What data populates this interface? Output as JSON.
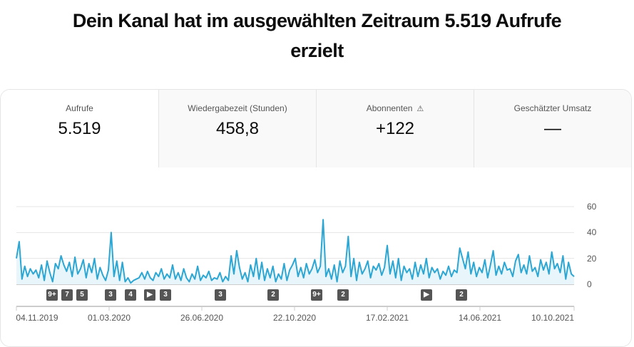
{
  "headline": "Dein Kanal hat im ausgewählten Zeitraum 5.519 Aufrufe erzielt",
  "tabs": [
    {
      "label": "Aufrufe",
      "value": "5.519"
    },
    {
      "label": "Wiedergabezeit (Stunden)",
      "value": "458,8"
    },
    {
      "label": "Abonnenten",
      "value": "+122",
      "icon": "warning-icon"
    },
    {
      "label": "Geschätzter Umsatz",
      "value": "—"
    }
  ],
  "chart_data": {
    "type": "area",
    "series_color": "#2ca6d3",
    "ylim": [
      0,
      60
    ],
    "y_ticks": [
      "60",
      "40",
      "20",
      "0"
    ],
    "x_ticks": [
      "04.11.2019",
      "01.03.2020",
      "26.06.2020",
      "22.10.2020",
      "17.02.2021",
      "14.06.2021",
      "10.10.2021"
    ],
    "values": [
      20,
      33,
      4,
      14,
      6,
      12,
      8,
      11,
      5,
      15,
      3,
      18,
      9,
      2,
      16,
      12,
      22,
      15,
      10,
      17,
      6,
      21,
      8,
      12,
      19,
      5,
      16,
      9,
      20,
      4,
      13,
      7,
      3,
      11,
      40,
      6,
      18,
      3,
      17,
      2,
      5,
      1,
      3,
      4,
      5,
      9,
      4,
      10,
      5,
      3,
      9,
      6,
      12,
      4,
      8,
      5,
      15,
      4,
      9,
      3,
      12,
      5,
      2,
      8,
      4,
      14,
      3,
      7,
      5,
      10,
      3,
      5,
      4,
      9,
      2,
      6,
      3,
      22,
      8,
      26,
      13,
      4,
      9,
      2,
      15,
      6,
      20,
      4,
      17,
      3,
      12,
      5,
      14,
      2,
      8,
      4,
      16,
      3,
      11,
      15,
      20,
      6,
      13,
      5,
      16,
      8,
      12,
      19,
      9,
      14,
      50,
      6,
      12,
      4,
      15,
      2,
      18,
      9,
      14,
      37,
      6,
      20,
      3,
      17,
      8,
      12,
      18,
      5,
      14,
      11,
      16,
      7,
      13,
      30,
      8,
      18,
      5,
      20,
      3,
      14,
      9,
      12,
      4,
      17,
      6,
      15,
      8,
      20,
      5,
      13,
      9,
      12,
      4,
      10,
      7,
      14,
      6,
      11,
      9,
      28,
      20,
      12,
      25,
      8,
      17,
      6,
      13,
      9,
      19,
      5,
      15,
      26,
      7,
      14,
      8,
      17,
      11,
      12,
      6,
      18,
      23,
      9,
      15,
      8,
      22,
      10,
      13,
      6,
      19,
      11,
      17,
      8,
      25,
      12,
      16,
      9,
      22,
      4,
      17,
      8,
      6
    ]
  },
  "markers": [
    {
      "label": "9+",
      "date": "2019-12"
    },
    {
      "label": "7",
      "date": "2019-12"
    },
    {
      "label": "5",
      "date": "2020-01"
    },
    {
      "label": "3",
      "date": "2020-03"
    },
    {
      "label": "4",
      "date": "2020-03"
    },
    {
      "label": "▶",
      "date": "2020-04"
    },
    {
      "label": "3",
      "date": "2020-05"
    },
    {
      "label": "3",
      "date": "2020-08"
    },
    {
      "label": "2",
      "date": "2020-10"
    },
    {
      "label": "9+",
      "date": "2020-11"
    },
    {
      "label": "2",
      "date": "2021-01"
    },
    {
      "label": "▶",
      "date": "2021-04"
    },
    {
      "label": "2",
      "date": "2021-05"
    }
  ]
}
